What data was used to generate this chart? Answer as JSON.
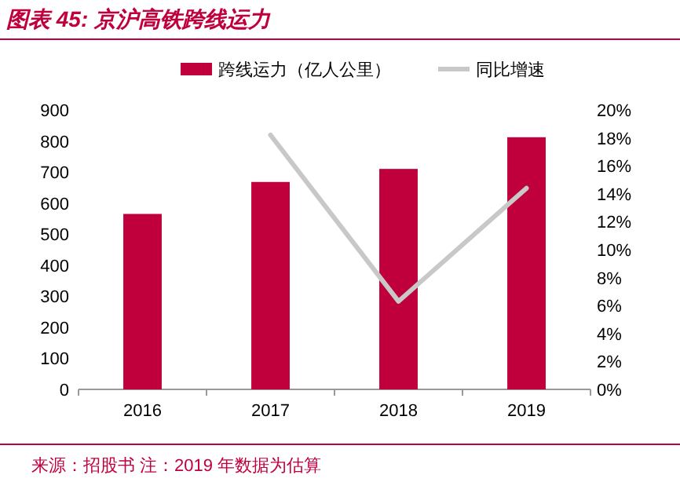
{
  "chart_data": {
    "type": "bar",
    "title": "图表 45: 京沪高铁跨线运力",
    "categories": [
      "2016",
      "2017",
      "2018",
      "2019"
    ],
    "series": [
      {
        "name": "跨线运力（亿人公里）",
        "color": "#c0003c",
        "values": [
          565,
          668,
          710,
          812
        ]
      },
      {
        "name": "同比增速",
        "type": "line",
        "axis": "y2",
        "color": "#c8c8c8",
        "values": [
          null,
          18.2,
          6.3,
          14.4
        ]
      }
    ],
    "ylim": [
      0,
      900
    ],
    "yticks": [
      0,
      100,
      200,
      300,
      400,
      500,
      600,
      700,
      800,
      900
    ],
    "y2lim": [
      0,
      20
    ],
    "y2ticks": [
      {
        "value": 0,
        "label": "0%"
      },
      {
        "value": 2,
        "label": "2%"
      },
      {
        "value": 4,
        "label": "4%"
      },
      {
        "value": 6,
        "label": "6%"
      },
      {
        "value": 8,
        "label": "8%"
      },
      {
        "value": 10,
        "label": "10%"
      },
      {
        "value": 12,
        "label": "12%"
      },
      {
        "value": 14,
        "label": "14%"
      },
      {
        "value": 16,
        "label": "16%"
      },
      {
        "value": 18,
        "label": "18%"
      },
      {
        "value": 20,
        "label": "20%"
      }
    ],
    "legend": "top",
    "grid": false,
    "marker": "none",
    "annotations": [
      "来源：招股书  注：2019 年数据为估算"
    ]
  }
}
